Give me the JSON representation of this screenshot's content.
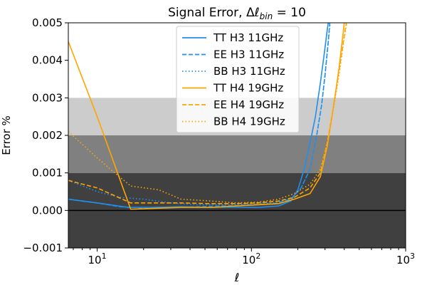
{
  "chart_data": {
    "type": "line",
    "title": "Signal Error, Δℓ",
    "title_subscript": "bin",
    "title_suffix": " = 10",
    "xlabel": "ℓ",
    "ylabel": "Error %",
    "xscale": "log",
    "xlim": [
      6.5,
      1000
    ],
    "ylim": [
      -0.001,
      0.005
    ],
    "x_ticks": [
      {
        "value": 10,
        "base": "10",
        "exp": "1"
      },
      {
        "value": 100,
        "base": "10",
        "exp": "2"
      },
      {
        "value": 1000,
        "base": "10",
        "exp": "3"
      }
    ],
    "y_ticks": [
      {
        "value": -0.001,
        "label": "−0.001"
      },
      {
        "value": 0.0,
        "label": "0.000"
      },
      {
        "value": 0.001,
        "label": "0.001"
      },
      {
        "value": 0.002,
        "label": "0.002"
      },
      {
        "value": 0.003,
        "label": "0.003"
      },
      {
        "value": 0.004,
        "label": "0.004"
      },
      {
        "value": 0.005,
        "label": "0.005"
      }
    ],
    "bands": [
      {
        "y0": -0.001,
        "y1": 0.001,
        "color": "#404040"
      },
      {
        "y0": 0.001,
        "y1": 0.002,
        "color": "#808080"
      },
      {
        "y0": 0.002,
        "y1": 0.003,
        "color": "#cccccc"
      }
    ],
    "zero_line": true,
    "legend_position": "top-center",
    "series": [
      {
        "name": "TT H3 11GHz",
        "color": "#1f8ff0",
        "dash": "solid",
        "x": [
          6.5,
          10,
          16,
          22,
          35,
          55,
          80,
          110,
          150,
          180,
          200,
          220,
          240,
          260,
          280,
          295,
          310,
          320
        ],
        "y": [
          0.0003,
          0.0002,
          8e-05,
          8e-05,
          0.0001,
          8e-05,
          9e-05,
          8e-05,
          0.00012,
          0.00025,
          0.00055,
          0.0011,
          0.0018,
          0.0025,
          0.0034,
          0.0041,
          0.0048,
          0.0052
        ]
      },
      {
        "name": "EE H3 11GHz",
        "color": "#1f8ff0",
        "dash": "dashed",
        "x": [
          6.5,
          8,
          10,
          14,
          20,
          30,
          45,
          70,
          100,
          140,
          180,
          210,
          240,
          265,
          285,
          300,
          315,
          325
        ],
        "y": [
          0.0003,
          0.00025,
          0.0002,
          0.0001,
          6e-05,
          8e-05,
          0.0001,
          0.00012,
          0.00015,
          0.00018,
          0.0003,
          0.0006,
          0.0011,
          0.002,
          0.0028,
          0.0036,
          0.0045,
          0.0052
        ]
      },
      {
        "name": "BB H3 11GHz",
        "color": "#1f8ff0",
        "dash": "dotted",
        "x": [
          6.5,
          10,
          14,
          20,
          30,
          45,
          70,
          100,
          140,
          180,
          210,
          240,
          265,
          285,
          300,
          315,
          328
        ],
        "y": [
          0.0008,
          0.0005,
          0.00035,
          0.0003,
          0.0002,
          0.00015,
          0.00015,
          0.00018,
          0.0002,
          0.0003,
          0.0006,
          0.0011,
          0.002,
          0.0028,
          0.0036,
          0.0045,
          0.0052
        ]
      },
      {
        "name": "TT H4 19GHz",
        "color": "#ffa500",
        "dash": "solid",
        "x": [
          6.5,
          10,
          16.5,
          22,
          35,
          55,
          80,
          110,
          150,
          190,
          240,
          280,
          310,
          330,
          350,
          370,
          390,
          405
        ],
        "y": [
          0.0045,
          0.0025,
          3e-05,
          5e-05,
          8e-05,
          8e-05,
          0.00012,
          0.00015,
          0.00018,
          0.0003,
          0.00045,
          0.0009,
          0.0017,
          0.0024,
          0.0031,
          0.0038,
          0.0046,
          0.0052
        ]
      },
      {
        "name": "EE H4 19GHz",
        "color": "#ffa500",
        "dash": "dashed",
        "x": [
          6.5,
          10,
          16.5,
          22,
          35,
          55,
          80,
          110,
          150,
          190,
          240,
          280,
          310,
          335,
          360,
          385,
          405,
          420
        ],
        "y": [
          0.0008,
          0.0006,
          0.0002,
          0.0002,
          0.0002,
          0.00018,
          0.00018,
          0.0002,
          0.00025,
          0.00035,
          0.0006,
          0.001,
          0.0018,
          0.0026,
          0.0034,
          0.0042,
          0.0048,
          0.0052
        ]
      },
      {
        "name": "BB H4 19GHz",
        "color": "#ffa500",
        "dash": "dotted",
        "x": [
          6.5,
          10,
          13,
          16.5,
          25,
          35,
          55,
          80,
          110,
          150,
          190,
          240,
          280,
          310,
          340,
          370,
          400,
          425
        ],
        "y": [
          0.0021,
          0.0014,
          0.001,
          0.00065,
          0.00055,
          0.0003,
          0.00025,
          0.0002,
          0.00022,
          0.0003,
          0.00045,
          0.0007,
          0.0011,
          0.0018,
          0.0027,
          0.0036,
          0.0046,
          0.0052
        ]
      }
    ]
  }
}
